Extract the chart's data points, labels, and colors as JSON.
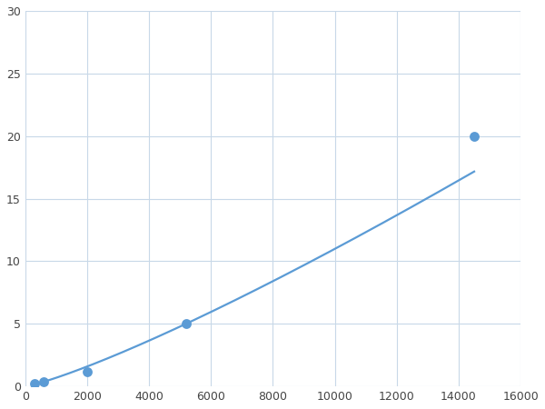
{
  "x_data": [
    300,
    600,
    2000,
    5200,
    14500
  ],
  "y_data": [
    0.2,
    0.35,
    1.2,
    5.0,
    20.0
  ],
  "line_color": "#5b9bd5",
  "marker_color": "#5b9bd5",
  "marker_size": 6,
  "marker_edge_width": 1.8,
  "xlim": [
    0,
    16000
  ],
  "ylim": [
    0,
    30
  ],
  "xticks": [
    0,
    2000,
    4000,
    6000,
    8000,
    10000,
    12000,
    14000,
    16000
  ],
  "yticks": [
    0,
    5,
    10,
    15,
    20,
    25,
    30
  ],
  "grid_color": "#c8d8e8",
  "background_color": "#ffffff",
  "line_width": 1.6
}
